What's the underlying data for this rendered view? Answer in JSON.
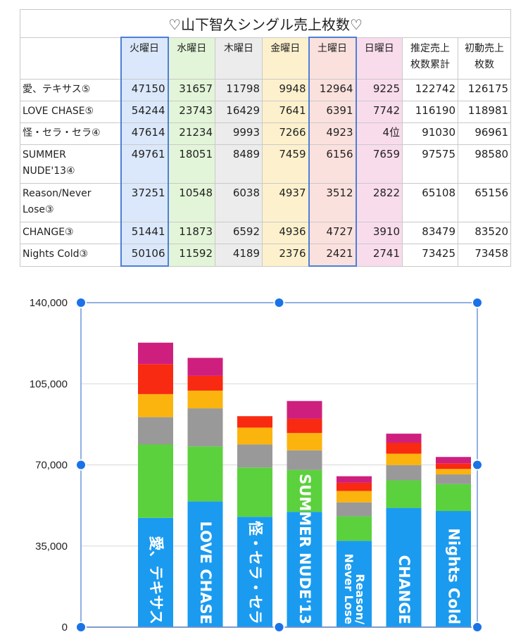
{
  "table": {
    "title": "♡山下智久シングル売上枚数♡",
    "headers": [
      "",
      "火曜日",
      "水曜日",
      "木曜日",
      "金曜日",
      "土曜日",
      "日曜日",
      "推定売上\n枚数累計",
      "初動売上\n枚数"
    ],
    "rows": [
      {
        "name": "愛、テキサス⑤",
        "cells": [
          "47150",
          "31657",
          "11798",
          "9948",
          "12964",
          "9225",
          "122742",
          "126175"
        ]
      },
      {
        "name": "LOVE CHASE⑤",
        "cells": [
          "54244",
          "23743",
          "16429",
          "7641",
          "6391",
          "7742",
          "116190",
          "118981"
        ]
      },
      {
        "name": "怪・セラ・セラ④",
        "cells": [
          "47614",
          "21234",
          "9993",
          "7266",
          "4923",
          "4位",
          "91030",
          "96961"
        ]
      },
      {
        "name": "SUMMER NUDE'13④",
        "cells": [
          "49761",
          "18051",
          "8489",
          "7459",
          "6156",
          "7659",
          "97575",
          "98580"
        ]
      },
      {
        "name": "Reason/Never Lose③",
        "cells": [
          "37251",
          "10548",
          "6038",
          "4937",
          "3512",
          "2822",
          "65108",
          "65156"
        ]
      },
      {
        "name": "CHANGE③",
        "cells": [
          "51441",
          "11873",
          "6592",
          "4936",
          "4727",
          "3910",
          "83479",
          "83520"
        ]
      },
      {
        "name": "Nights  Cold③",
        "cells": [
          "50106",
          "11592",
          "4189",
          "2376",
          "2421",
          "2741",
          "73425",
          "73458"
        ]
      }
    ]
  },
  "chart_data": {
    "type": "bar",
    "stacked": true,
    "categories": [
      "愛、テキサス",
      "LOVE CHASE",
      "怪・セラ・セラ",
      "SUMMER NUDE'13",
      "Reason/\nNever Lose",
      "CHANGE",
      "Nights  Cold"
    ],
    "series": [
      {
        "values": [
          47150,
          54244,
          47614,
          49761,
          37251,
          51441,
          50106
        ],
        "color": "#1a9bf0"
      },
      {
        "values": [
          31657,
          23743,
          21234,
          18051,
          10548,
          11873,
          11592
        ],
        "color": "#5bd13d"
      },
      {
        "values": [
          11798,
          16429,
          9993,
          8489,
          6038,
          6592,
          4189
        ],
        "color": "#999999"
      },
      {
        "values": [
          9948,
          7641,
          7266,
          7459,
          4937,
          4936,
          2376
        ],
        "color": "#fbb40e"
      },
      {
        "values": [
          12964,
          6391,
          4923,
          6156,
          3512,
          4727,
          2421
        ],
        "color": "#f82a12"
      },
      {
        "values": [
          9225,
          7742,
          0,
          7659,
          2822,
          3910,
          2741
        ],
        "color": "#cf1f7e"
      }
    ],
    "yticks": [
      "0",
      "35,000",
      "70,000",
      "105,000",
      "140,000"
    ],
    "ylim": [
      0,
      140000
    ],
    "grid": true,
    "legend": "none"
  }
}
